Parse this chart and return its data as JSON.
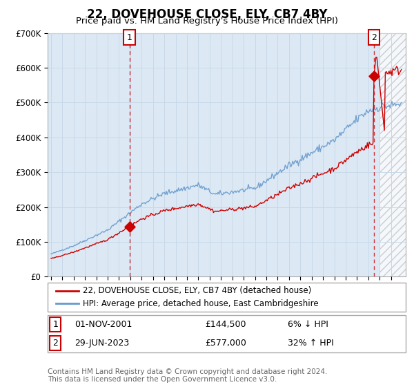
{
  "title": "22, DOVEHOUSE CLOSE, ELY, CB7 4BY",
  "subtitle": "Price paid vs. HM Land Registry's House Price Index (HPI)",
  "ylim": [
    0,
    700000
  ],
  "yticks": [
    0,
    100000,
    200000,
    300000,
    400000,
    500000,
    600000,
    700000
  ],
  "ytick_labels": [
    "£0",
    "£100K",
    "£200K",
    "£300K",
    "£400K",
    "£500K",
    "£600K",
    "£700K"
  ],
  "xlim_min": 1994.7,
  "xlim_max": 2026.3,
  "sale1_year": 2001.92,
  "sale1_price": 144500,
  "sale2_year": 2023.49,
  "sale2_price": 577000,
  "line_color_property": "#cc0000",
  "line_color_hpi": "#6699cc",
  "vline_color": "#cc0000",
  "plot_bg_color": "#dce9f5",
  "future_hatch_color": "#bbbbbb",
  "legend_label1": "22, DOVEHOUSE CLOSE, ELY, CB7 4BY (detached house)",
  "legend_label2": "HPI: Average price, detached house, East Cambridgeshire",
  "annotation1_date": "01-NOV-2001",
  "annotation1_price": "£144,500",
  "annotation1_hpi": "6% ↓ HPI",
  "annotation2_date": "29-JUN-2023",
  "annotation2_price": "£577,000",
  "annotation2_hpi": "32% ↑ HPI",
  "footer": "Contains HM Land Registry data © Crown copyright and database right 2024.\nThis data is licensed under the Open Government Licence v3.0.",
  "bg_color": "#ffffff",
  "grid_color": "#c8d8e8",
  "title_fontsize": 12,
  "subtitle_fontsize": 9.5,
  "tick_fontsize": 8.5,
  "legend_fontsize": 8.5
}
